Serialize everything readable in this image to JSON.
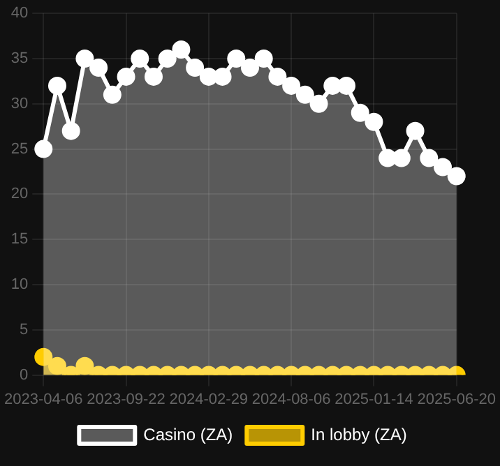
{
  "chart_data": {
    "type": "area",
    "categories": [
      "2023-04-06",
      null,
      null,
      null,
      null,
      null,
      "2023-09-22",
      null,
      null,
      null,
      null,
      null,
      "2024-02-29",
      null,
      null,
      null,
      null,
      null,
      "2024-08-06",
      null,
      null,
      null,
      null,
      null,
      "2025-01-14",
      null,
      null,
      null,
      null,
      null,
      "2025-06-20"
    ],
    "series": [
      {
        "name": "In lobby (ZA)",
        "color": "#ffcc00",
        "values": [
          2,
          1,
          0,
          1,
          0,
          0,
          0,
          0,
          0,
          0,
          0,
          0,
          0,
          0,
          0,
          0,
          0,
          0,
          0,
          0,
          0,
          0,
          0,
          0,
          0,
          0,
          0,
          0,
          0,
          0,
          0
        ]
      },
      {
        "name": "Casino (ZA)",
        "color": "#ffffff",
        "values": [
          25,
          32,
          27,
          35,
          34,
          31,
          33,
          35,
          33,
          35,
          36,
          34,
          33,
          33,
          35,
          34,
          35,
          33,
          32,
          31,
          30,
          32,
          32,
          29,
          28,
          24,
          24,
          27,
          24,
          23,
          22
        ]
      }
    ],
    "ylim": [
      0,
      40
    ],
    "yticks": [
      0,
      5,
      10,
      15,
      20,
      25,
      30,
      35,
      40
    ],
    "grid": true,
    "legend": "bottom",
    "marker": "circle"
  }
}
